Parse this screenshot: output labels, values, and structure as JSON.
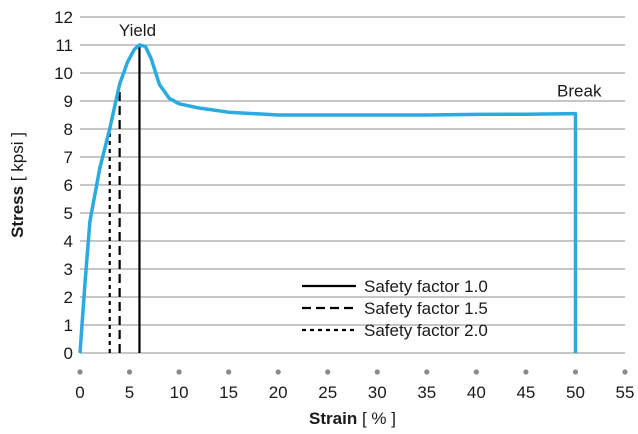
{
  "chart_data": {
    "type": "line",
    "xlabel": {
      "bold": "Strain",
      "unit": "[ % ]"
    },
    "ylabel": {
      "bold": "Stress",
      "unit": "[ kpsi ]"
    },
    "xlim": [
      0,
      55
    ],
    "ylim": [
      0,
      12
    ],
    "xticks": [
      0,
      5,
      10,
      15,
      20,
      25,
      30,
      35,
      40,
      45,
      50,
      55
    ],
    "yticks": [
      0,
      1,
      2,
      3,
      4,
      5,
      6,
      7,
      8,
      9,
      10,
      11,
      12
    ],
    "grid": "horizontal",
    "curve_color": "#29abe2",
    "series": [
      {
        "points": [
          [
            0,
            0
          ],
          [
            0.5,
            2.5
          ],
          [
            1,
            4.7
          ],
          [
            2,
            6.6
          ],
          [
            3,
            8.0
          ],
          [
            4,
            9.6
          ],
          [
            4.8,
            10.4
          ],
          [
            5.5,
            10.85
          ],
          [
            6,
            11.0
          ],
          [
            6.6,
            10.95
          ],
          [
            7.2,
            10.5
          ],
          [
            8,
            9.6
          ],
          [
            9,
            9.1
          ],
          [
            10,
            8.9
          ],
          [
            12,
            8.75
          ],
          [
            15,
            8.6
          ],
          [
            20,
            8.5
          ],
          [
            25,
            8.5
          ],
          [
            30,
            8.5
          ],
          [
            35,
            8.5
          ],
          [
            40,
            8.52
          ],
          [
            45,
            8.53
          ],
          [
            50,
            8.55
          ],
          [
            50,
            0
          ]
        ]
      }
    ],
    "reference_lines": [
      {
        "name": "Safety factor 1.0",
        "x": 6,
        "y": 11.0,
        "style": "solid"
      },
      {
        "name": "Safety factor 1.5",
        "x": 4,
        "y": 9.6,
        "style": "dashed"
      },
      {
        "name": "Safety factor 2.0",
        "x": 3,
        "y": 8.0,
        "style": "dotted"
      }
    ],
    "annotations": [
      {
        "text": "Yield",
        "x": 6,
        "y": 11.0
      },
      {
        "text": "Break",
        "x": 50,
        "y": 8.55
      }
    ],
    "legend_position": "bottom-right"
  }
}
